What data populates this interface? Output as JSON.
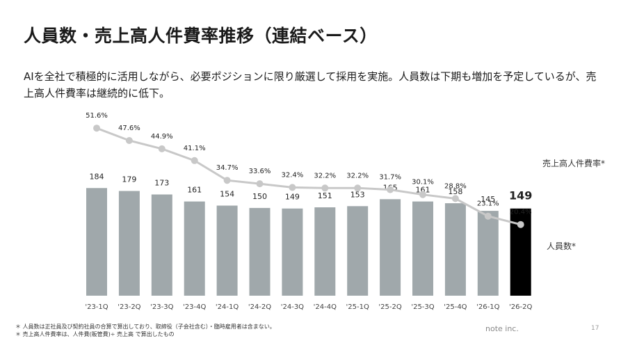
{
  "slide": {
    "title": "人員数・売上高人件費率推移（連結ベース）",
    "description": "AIを全社で積極的に活用しながら、必要ポジションに限り厳選して採用を実施。人員数は下期も増加を予定しているが、売上高人件費率は継続的に低下。",
    "footnotes": [
      "＊ 人員数は正社員及び契約社員の合算で算出しており、取締役（子会社含む）・臨時雇用者は含まない。",
      "＊ 売上高人件費率は、人件費(販管費)÷ 売上高 で算出したもの"
    ],
    "company": "note inc.",
    "page_number": "17"
  },
  "chart_data": {
    "type": "bar",
    "categories": [
      "'23-1Q",
      "'23-2Q",
      "'23-3Q",
      "'23-4Q",
      "'24-1Q",
      "'24-2Q",
      "'24-3Q",
      "'24-4Q",
      "'25-1Q",
      "'25-2Q",
      "'25-3Q",
      "'25-4Q",
      "'26-1Q",
      "'26-2Q"
    ],
    "series": [
      {
        "name": "人員数*",
        "kind": "bar",
        "values": [
          184,
          179,
          173,
          161,
          154,
          150,
          149,
          151,
          153,
          165,
          161,
          158,
          145,
          149
        ],
        "value_labels": [
          "184",
          "179",
          "173",
          "161",
          "154",
          "150",
          "149",
          "151",
          "153",
          "165",
          "161",
          "158",
          "145",
          "149"
        ],
        "color": "#a0a8ab",
        "highlight_index": 13,
        "highlight_color": "#000000"
      },
      {
        "name": "売上高人件費率*",
        "kind": "line",
        "values": [
          51.6,
          47.6,
          44.9,
          41.1,
          34.7,
          33.6,
          32.4,
          32.2,
          32.2,
          31.7,
          30.1,
          28.8,
          23.1,
          20.4
        ],
        "value_labels": [
          "51.6%",
          "47.6%",
          "44.9%",
          "41.1%",
          "34.7%",
          "33.6%",
          "32.4%",
          "32.2%",
          "32.2%",
          "31.7%",
          "30.1%",
          "28.8%",
          "23.1%",
          "20.4%"
        ],
        "color": "#c8c8c8"
      }
    ],
    "xlabel": "",
    "ylabel": "",
    "grid": false
  }
}
